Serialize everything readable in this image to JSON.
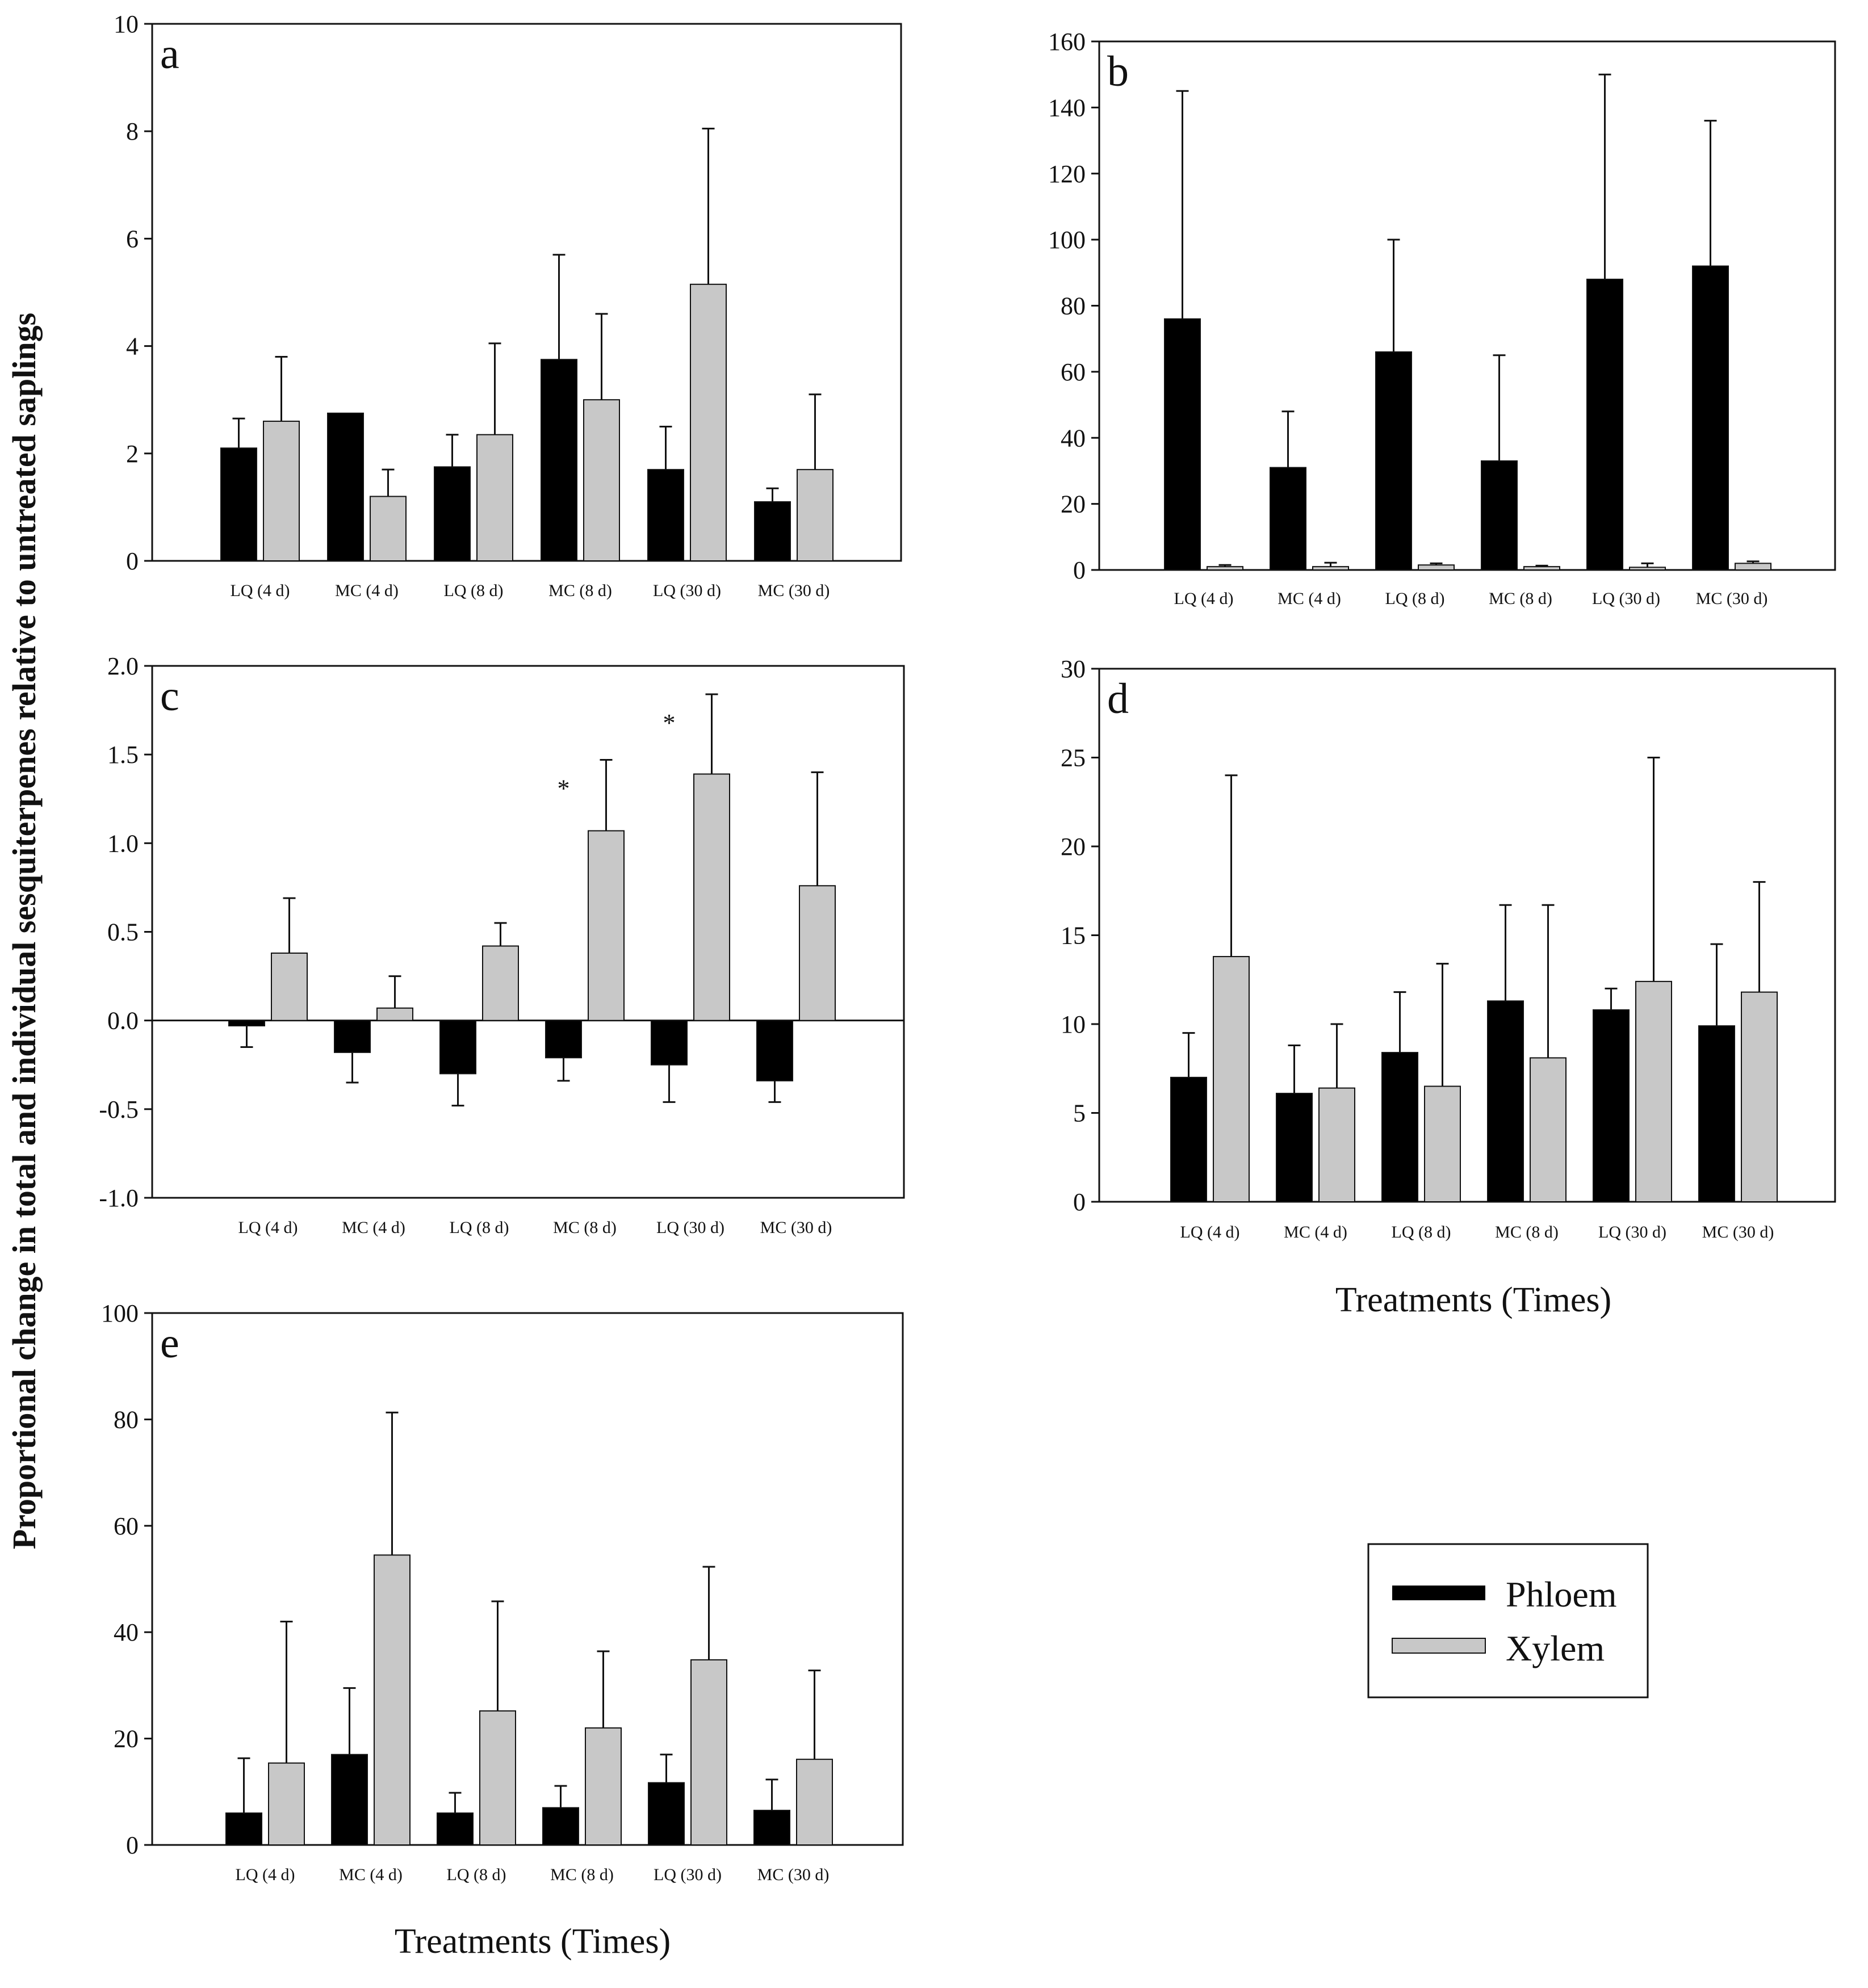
{
  "figure": {
    "y_axis_label": "Proportional change in total and individual sesquiterpenes relative to untreated saplings",
    "x_axis_label": "Treatments (Times)",
    "colors": {
      "phloem": "#000000",
      "xylem": "#c8c8c8",
      "axis": "#111111"
    }
  },
  "legend": {
    "entries": [
      {
        "name": "Phloem",
        "color": "#000000"
      },
      {
        "name": "Xylem",
        "color": "#c8c8c8"
      }
    ]
  },
  "chart_data": [
    {
      "type": "bar",
      "panel": "a",
      "categories": [
        "LQ (4 d)",
        "MC (4 d)",
        "LQ (8 d)",
        "MC (8 d)",
        "LQ (30 d)",
        "MC (30 d)"
      ],
      "ylim": [
        0,
        10
      ],
      "yticks": [
        "0",
        "2",
        "4",
        "6",
        "8",
        "10"
      ],
      "series": [
        {
          "name": "Phloem",
          "values": [
            2.1,
            2.75,
            1.75,
            3.75,
            1.7,
            1.1
          ],
          "errors": [
            0.55,
            0.0,
            0.6,
            1.95,
            0.8,
            0.25
          ]
        },
        {
          "name": "Xylem",
          "values": [
            2.6,
            1.2,
            2.35,
            3.0,
            5.15,
            1.7
          ],
          "errors": [
            1.2,
            0.5,
            1.7,
            1.6,
            2.9,
            1.4
          ]
        }
      ],
      "annotations": []
    },
    {
      "type": "bar",
      "panel": "b",
      "categories": [
        "LQ (4 d)",
        "MC (4 d)",
        "LQ (8 d)",
        "MC (8 d)",
        "LQ (30 d)",
        "MC (30 d)"
      ],
      "ylim": [
        0,
        160
      ],
      "yticks": [
        "0",
        "20",
        "40",
        "60",
        "80",
        "100",
        "120",
        "140",
        "160"
      ],
      "series": [
        {
          "name": "Phloem",
          "values": [
            76,
            31,
            66,
            33,
            88,
            92
          ],
          "errors": [
            69,
            17,
            34,
            32,
            62,
            44
          ]
        },
        {
          "name": "Xylem",
          "values": [
            1,
            1,
            1.5,
            1,
            0.8,
            2
          ],
          "errors": [
            0.5,
            1.2,
            0.5,
            0.3,
            1.2,
            0.6
          ]
        }
      ],
      "annotations": []
    },
    {
      "type": "bar",
      "panel": "c",
      "categories": [
        "LQ (4 d)",
        "MC (4 d)",
        "LQ (8 d)",
        "MC (8 d)",
        "LQ (30 d)",
        "MC (30 d)"
      ],
      "ylim": [
        -1.0,
        2.0
      ],
      "yticks": [
        "-1.0",
        "-0.5",
        "0.0",
        "0.5",
        "1.0",
        "1.5",
        "2.0"
      ],
      "series": [
        {
          "name": "Phloem",
          "values": [
            -0.03,
            -0.18,
            -0.3,
            -0.21,
            -0.25,
            -0.34
          ],
          "errors": [
            0.12,
            0.17,
            0.18,
            0.13,
            0.21,
            0.12
          ]
        },
        {
          "name": "Xylem",
          "values": [
            0.38,
            0.07,
            0.42,
            1.07,
            1.39,
            0.76
          ],
          "errors": [
            0.31,
            0.18,
            0.13,
            0.4,
            0.45,
            0.64
          ]
        }
      ],
      "annotations": [
        {
          "text": "*",
          "category": "MC (8 d)"
        },
        {
          "text": "*",
          "category": "LQ (30 d)"
        }
      ]
    },
    {
      "type": "bar",
      "panel": "d",
      "categories": [
        "LQ (4 d)",
        "MC (4 d)",
        "LQ (8 d)",
        "MC (8 d)",
        "LQ (30 d)",
        "MC (30 d)"
      ],
      "ylim": [
        0,
        30
      ],
      "yticks": [
        "0",
        "5",
        "10",
        "15",
        "20",
        "25",
        "30"
      ],
      "series": [
        {
          "name": "Phloem",
          "values": [
            7.0,
            6.1,
            8.4,
            11.3,
            10.8,
            9.9
          ],
          "errors": [
            2.5,
            2.7,
            3.4,
            5.4,
            1.2,
            4.6
          ]
        },
        {
          "name": "Xylem",
          "values": [
            13.8,
            6.4,
            6.5,
            8.1,
            12.4,
            11.8
          ],
          "errors": [
            10.2,
            3.6,
            6.9,
            8.6,
            12.6,
            6.2
          ]
        }
      ],
      "annotations": []
    },
    {
      "type": "bar",
      "panel": "e",
      "categories": [
        "LQ (4 d)",
        "MC (4 d)",
        "LQ (8 d)",
        "MC (8 d)",
        "LQ (30 d)",
        "MC (30 d)"
      ],
      "ylim": [
        0,
        100
      ],
      "yticks": [
        "0",
        "20",
        "40",
        "60",
        "80",
        "100"
      ],
      "series": [
        {
          "name": "Phloem",
          "values": [
            6,
            17,
            6,
            7,
            11.7,
            6.5
          ],
          "errors": [
            10.3,
            12.5,
            3.8,
            4.1,
            5.3,
            5.8
          ]
        },
        {
          "name": "Xylem",
          "values": [
            15.4,
            54.5,
            25.2,
            22,
            34.8,
            16.1
          ],
          "errors": [
            26.6,
            26.8,
            20.6,
            14.4,
            17.5,
            16.7
          ]
        }
      ],
      "annotations": []
    }
  ]
}
